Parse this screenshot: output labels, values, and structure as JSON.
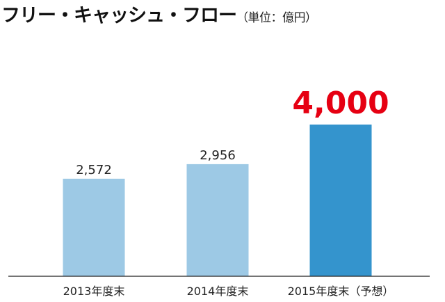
{
  "chart_data": {
    "type": "bar",
    "title": "フリー・キャッシュ・フロー",
    "subtitle": "（単位：億円）",
    "categories": [
      "2013年度末",
      "2014年度末",
      "2015年度末（予想）"
    ],
    "values": [
      2572,
      2956,
      4000
    ],
    "value_labels": [
      "2,572",
      "2,956",
      "4,000"
    ],
    "highlight_index": 2,
    "colors": {
      "bar": "#9dc9e5",
      "bar_highlight": "#3494cd",
      "highlight_label": "#e60012",
      "text": "#222222",
      "axis": "#222222"
    },
    "ylim": [
      0,
      4000
    ],
    "grid": false,
    "legend": "none"
  }
}
